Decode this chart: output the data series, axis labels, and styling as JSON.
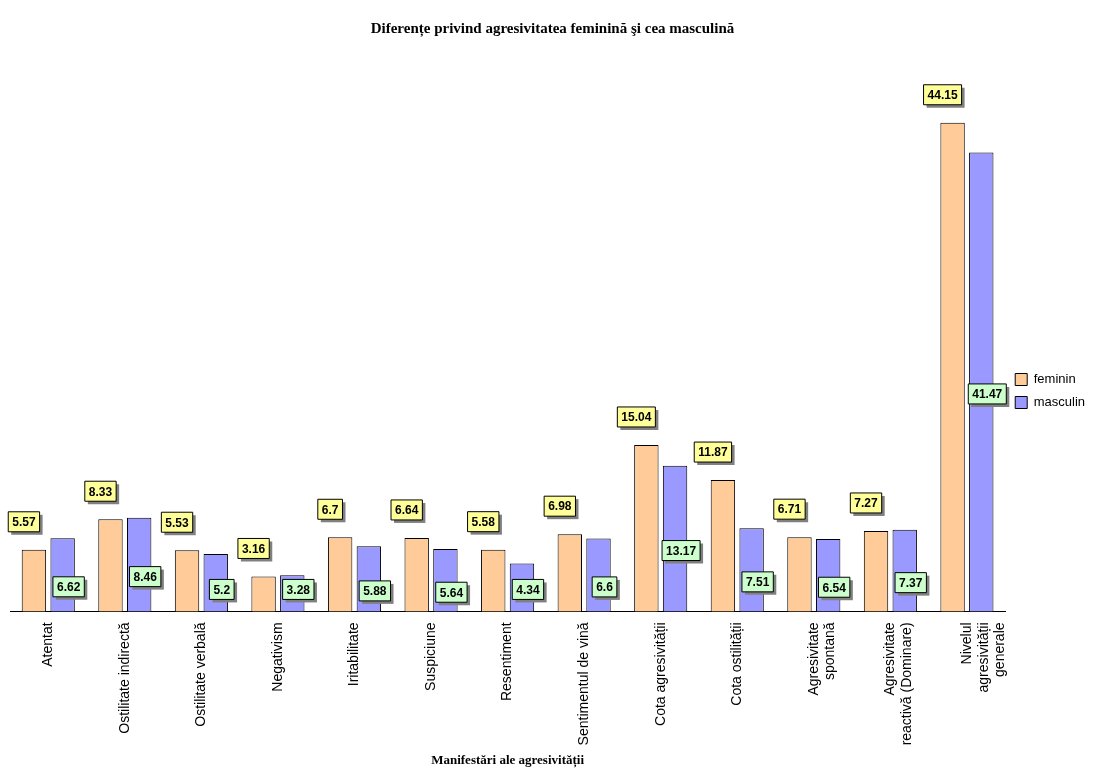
{
  "chart_data": {
    "type": "bar",
    "title": "Diferențe privind agresivitatea feminină şi cea masculină",
    "xlabel": "Manifestări ale agresivității",
    "categories": [
      "Atentat",
      "Ostilitate indirectă",
      "Ostilitate verbală",
      "Negativism",
      "Iritabilitate",
      "Suspiciune",
      "Resentiment",
      "Sentimentul de vină",
      "Cota agresivității",
      "Cota ostilității",
      "Agresivitate spontană",
      "Agresivitate reactivă (Dominare)",
      "Nivelul agresivității generale"
    ],
    "series": [
      {
        "name": "feminin",
        "color": "#ffcc99",
        "values": [
          5.57,
          8.33,
          5.53,
          3.16,
          6.7,
          6.64,
          5.58,
          6.98,
          15.04,
          11.87,
          6.71,
          7.27,
          44.15
        ]
      },
      {
        "name": "masculin",
        "color": "#9999ff",
        "values": [
          6.62,
          8.46,
          5.2,
          3.28,
          5.88,
          5.64,
          4.34,
          6.6,
          13.17,
          7.51,
          6.54,
          7.37,
          41.47
        ]
      }
    ],
    "data_labels": true,
    "grid": false,
    "legend": "right",
    "tick_labels": "x"
  }
}
